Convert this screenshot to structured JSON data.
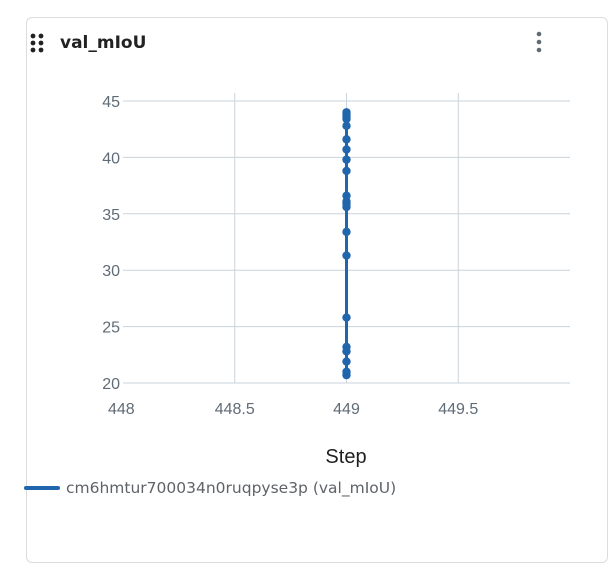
{
  "panel": {
    "title": "val_mIoU",
    "drag_icon": "drag-handle-icon",
    "menu_icon": "more-vertical-icon"
  },
  "colors": {
    "series": "#2166ac",
    "grid": "#c9d3db",
    "axis_text": "#5f6b77",
    "title_text": "#1f1f1f"
  },
  "chart_data": {
    "type": "line",
    "xlabel": "Step",
    "ylabel": "",
    "xlim": [
      448,
      450
    ],
    "ylim": [
      20,
      45
    ],
    "x_ticks": [
      "448",
      "448.5",
      "449",
      "449.5"
    ],
    "x_tick_values": [
      448,
      448.5,
      449,
      449.5
    ],
    "y_ticks": [
      "20",
      "25",
      "30",
      "35",
      "40",
      "45"
    ],
    "y_tick_values": [
      20,
      25,
      30,
      35,
      40,
      45
    ],
    "grid": true,
    "legend_position": "bottom-left",
    "series": [
      {
        "name": "cm6hmtur700034n0ruqpyse3p (val_mIoU)",
        "x": [
          449,
          449,
          449,
          449,
          449,
          449,
          449,
          449,
          449,
          449,
          449,
          449,
          449,
          449,
          449,
          449,
          449,
          449,
          449,
          449,
          449
        ],
        "y": [
          20.7,
          21.0,
          21.9,
          22.8,
          23.2,
          25.8,
          31.3,
          33.4,
          35.6,
          35.9,
          36.1,
          36.6,
          38.8,
          39.8,
          40.7,
          41.6,
          42.8,
          43.4,
          43.6,
          43.8,
          44.0
        ]
      }
    ]
  }
}
